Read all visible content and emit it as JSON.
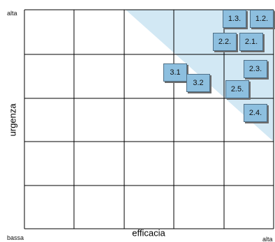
{
  "axes": {
    "y_label": "urgenza",
    "x_label": "efficacia",
    "y_top": "alta",
    "y_bottom": "bassa",
    "x_right": "alta"
  },
  "grid": {
    "rows": 5,
    "columns": 5,
    "line_color": "#000000"
  },
  "highlight_color": "#d2e8f4",
  "box_color": "#8dbfdf",
  "items": [
    {
      "id": "1.3",
      "label": "1.3."
    },
    {
      "id": "1.2",
      "label": "1.2."
    },
    {
      "id": "2.2",
      "label": "2.2."
    },
    {
      "id": "2.1",
      "label": "2.1."
    },
    {
      "id": "2.3",
      "label": "2.3."
    },
    {
      "id": "3.1",
      "label": "3.1"
    },
    {
      "id": "3.2",
      "label": "3.2"
    },
    {
      "id": "2.5",
      "label": "2.5."
    },
    {
      "id": "2.4",
      "label": "2.4."
    }
  ]
}
